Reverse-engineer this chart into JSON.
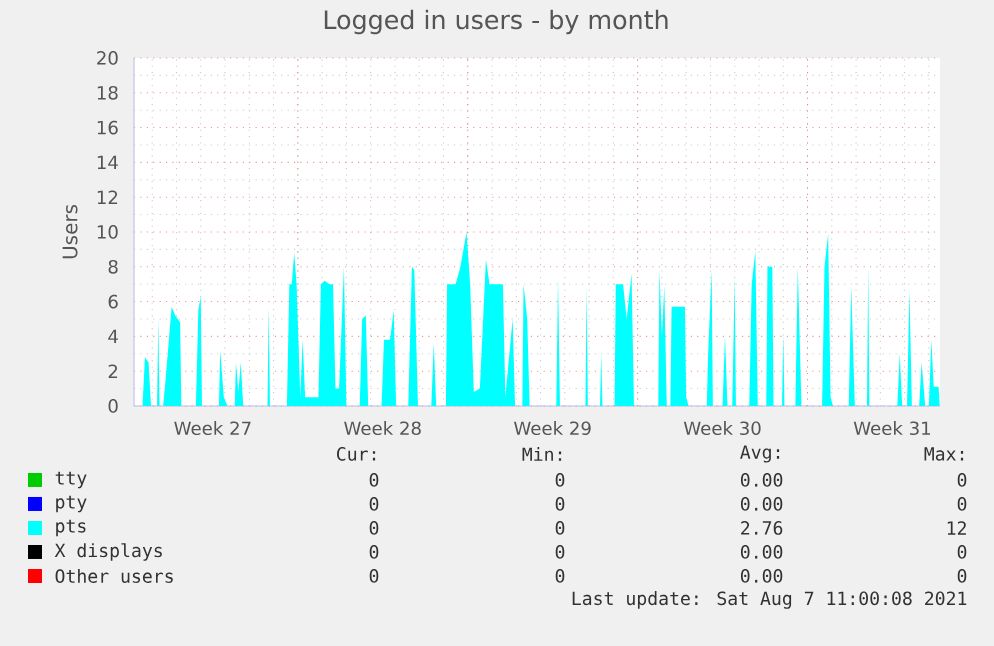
{
  "chart_data": {
    "type": "area",
    "title": "Logged in users - by month",
    "ylabel": "Users",
    "xlim": [
      "2021-07-05T06:00",
      "2021-08-07T11:00"
    ],
    "ylim": [
      0,
      20
    ],
    "xticks": [
      {
        "value": "2021-07-08T12:00",
        "label": "Week 27"
      },
      {
        "value": "2021-07-15T12:00",
        "label": "Week 28"
      },
      {
        "value": "2021-07-22T12:00",
        "label": "Week 29"
      },
      {
        "value": "2021-07-29T12:00",
        "label": "Week 30"
      },
      {
        "value": "2021-08-05T12:00",
        "label": "Week 31"
      },
      {
        "value": "2021-07-12",
        "label": null
      },
      {
        "value": "2021-07-19",
        "label": null
      },
      {
        "value": "2021-07-26",
        "label": null
      },
      {
        "value": "2021-08-02",
        "label": null
      }
    ],
    "yticks": [
      0,
      2,
      4,
      6,
      8,
      10,
      12,
      14,
      16,
      18,
      20
    ],
    "grid": true,
    "legend": "bottom",
    "series": [
      {
        "name": "tty",
        "color": "#00cc00",
        "values": [
          null
        ]
      },
      {
        "name": "pty",
        "color": "#0000ff",
        "values": [
          null
        ]
      },
      {
        "name": "pts",
        "color": "#00ffff",
        "x": [
          "2021-07-05T06:00",
          "2021-07-05T14:24",
          "2021-07-05T16:48",
          "2021-07-05T20:24",
          "2021-07-05T22:48",
          "2021-07-06T04:48",
          "2021-07-06T06:00",
          "2021-07-06T07:12",
          "2021-07-06T10:48",
          "2021-07-06T13:12",
          "2021-07-06T19:12",
          "2021-07-06T22:48",
          "2021-07-07T03:36",
          "2021-07-07T04:48",
          "2021-07-07T19:12",
          "2021-07-07T21:36",
          "2021-07-08T00:00",
          "2021-07-08T01:12",
          "2021-07-08T18:00",
          "2021-07-08T19:12",
          "2021-07-08T22:48",
          "2021-07-09T02:24",
          "2021-07-09T09:36",
          "2021-07-09T10:48",
          "2021-07-09T13:12",
          "2021-07-09T15:36",
          "2021-07-09T18:00",
          "2021-07-10T18:00",
          "2021-07-10T19:12",
          "2021-07-10T20:24",
          "2021-07-11T13:12",
          "2021-07-11T15:36",
          "2021-07-11T18:00",
          "2021-07-11T20:24",
          "2021-07-11T22:48",
          "2021-07-12T02:24",
          "2021-07-12T04:48",
          "2021-07-12T07:12",
          "2021-07-12T20:24",
          "2021-07-12T22:48",
          "2021-07-13T02:24",
          "2021-07-13T07:12",
          "2021-07-13T10:48",
          "2021-07-13T13:12",
          "2021-07-13T16:48",
          "2021-07-13T21:36",
          "2021-07-14T00:00",
          "2021-07-14T13:12",
          "2021-07-14T15:36",
          "2021-07-14T19:12",
          "2021-07-14T21:36",
          "2021-07-15T10:48",
          "2021-07-15T13:12",
          "2021-07-15T19:12",
          "2021-07-15T22:48",
          "2021-07-16T01:12",
          "2021-07-16T13:12",
          "2021-07-16T16:48",
          "2021-07-16T19:12",
          "2021-07-16T22:48",
          "2021-07-17T12:00",
          "2021-07-17T14:24",
          "2021-07-17T16:48",
          "2021-07-18T02:24",
          "2021-07-18T03:36",
          "2021-07-18T12:00",
          "2021-07-18T16:48",
          "2021-07-18T22:48",
          "2021-07-19T02:24",
          "2021-07-19T06:00",
          "2021-07-19T12:00",
          "2021-07-19T18:00",
          "2021-07-19T21:36",
          "2021-07-20T02:24",
          "2021-07-20T10:48",
          "2021-07-20T13:12",
          "2021-07-20T20:24",
          "2021-07-20T22:48",
          "2021-07-21T06:00",
          "2021-07-21T07:12",
          "2021-07-21T10:48",
          "2021-07-21T13:12",
          "2021-07-22T15:36",
          "2021-07-22T17:17",
          "2021-07-22T19:12",
          "2021-07-23T20:24",
          "2021-07-23T21:36",
          "2021-07-23T22:48",
          "2021-07-24T10:48",
          "2021-07-24T12:00",
          "2021-07-24T13:12",
          "2021-07-25T01:12",
          "2021-07-25T02:24",
          "2021-07-25T09:36",
          "2021-07-25T13:12",
          "2021-07-25T18:00",
          "2021-07-25T20:24",
          "2021-07-26T20:24",
          "2021-07-26T21:36",
          "2021-07-27T00:00",
          "2021-07-27T02:24",
          "2021-07-27T04:48",
          "2021-07-27T08:24",
          "2021-07-27T09:36",
          "2021-07-27T22:48",
          "2021-07-28T00:00",
          "2021-07-28T02:24",
          "2021-07-28T20:24",
          "2021-07-28T21:36",
          "2021-07-29T01:12",
          "2021-07-29T02:24",
          "2021-07-29T12:00",
          "2021-07-29T14:24",
          "2021-07-29T16:48",
          "2021-07-29T21:36",
          "2021-07-30T00:00",
          "2021-07-30T01:12",
          "2021-07-30T14:24",
          "2021-07-30T16:48",
          "2021-07-30T20:24",
          "2021-07-30T22:48",
          "2021-07-31T07:12",
          "2021-07-31T08:24",
          "2021-07-31T13:12",
          "2021-07-31T14:24",
          "2021-07-31T22:48",
          "2021-08-01T00:00",
          "2021-08-01T01:12",
          "2021-08-01T12:00",
          "2021-08-01T14:24",
          "2021-08-01T18:00",
          "2021-08-02T14:24",
          "2021-08-02T16:48",
          "2021-08-02T20:24",
          "2021-08-02T22:48",
          "2021-08-03T01:12",
          "2021-08-03T16:48",
          "2021-08-03T19:12",
          "2021-08-03T22:48",
          "2021-08-04T10:48",
          "2021-08-04T12:00",
          "2021-08-04T13:12",
          "2021-08-05T16:48",
          "2021-08-05T19:12",
          "2021-08-05T21:36",
          "2021-08-06T02:24",
          "2021-08-06T04:48",
          "2021-08-06T07:12",
          "2021-08-06T14:24",
          "2021-08-06T16:48",
          "2021-08-06T20:24",
          "2021-08-07T00:00",
          "2021-08-07T02:24",
          "2021-08-07T04:48",
          "2021-08-07T09:36",
          "2021-08-07T10:48",
          "2021-08-07T11:00"
        ],
        "values": [
          0,
          0,
          2.8,
          2.5,
          0,
          0,
          5,
          0,
          0,
          1.5,
          5.7,
          5.2,
          4.8,
          0,
          0,
          5.5,
          6.3,
          0,
          0,
          3.2,
          0.5,
          0,
          0,
          2.5,
          0.8,
          2.5,
          0,
          0,
          5.7,
          0,
          0,
          7,
          7,
          8.8,
          7,
          0.5,
          3.8,
          0.5,
          0.5,
          7,
          7.2,
          7,
          7,
          1,
          1,
          8,
          0,
          0,
          5,
          5.2,
          0,
          0,
          3.8,
          3.8,
          5.5,
          0,
          0,
          8,
          7.8,
          0,
          0,
          3.6,
          0,
          0,
          7,
          7,
          8,
          10,
          7,
          0.8,
          1,
          8.4,
          7,
          7,
          7,
          0.5,
          5,
          0,
          0,
          7,
          5,
          0,
          0,
          7.3,
          0,
          0,
          6.9,
          0,
          0,
          3,
          0,
          0,
          7,
          7,
          5,
          7.6,
          0,
          0,
          7.8,
          4,
          6.9,
          0,
          0,
          5.7,
          5.7,
          0.5,
          0,
          0,
          2.8,
          7.8,
          0,
          0,
          4,
          0,
          0,
          7.4,
          0,
          0,
          7,
          8.9,
          0,
          0,
          8,
          8,
          0,
          0,
          4.2,
          0,
          0,
          8,
          0,
          0,
          8,
          9.9,
          0.5,
          0,
          0,
          6.9,
          0,
          0,
          8,
          0,
          0,
          3,
          0,
          0,
          6.7,
          0,
          0,
          2.5,
          0,
          0,
          3.8,
          1.1,
          1.1,
          0,
          0
        ]
      },
      {
        "name": "X displays",
        "color": "#000000",
        "values": [
          null
        ]
      },
      {
        "name": "Other users",
        "color": "#ff0000",
        "values": [
          null
        ]
      }
    ],
    "annotations": [
      "Cur:",
      "Min:",
      "Avg:",
      "Max:",
      "0",
      "0",
      "0.00",
      "0",
      "0",
      "0",
      "0.00",
      "0",
      "0",
      "0",
      "2.76",
      "12",
      "0",
      "0",
      "0.00",
      "0",
      "0",
      "0",
      "0.00",
      "0",
      "Last update: Sat Aug  7 11:00:08 2021"
    ]
  }
}
